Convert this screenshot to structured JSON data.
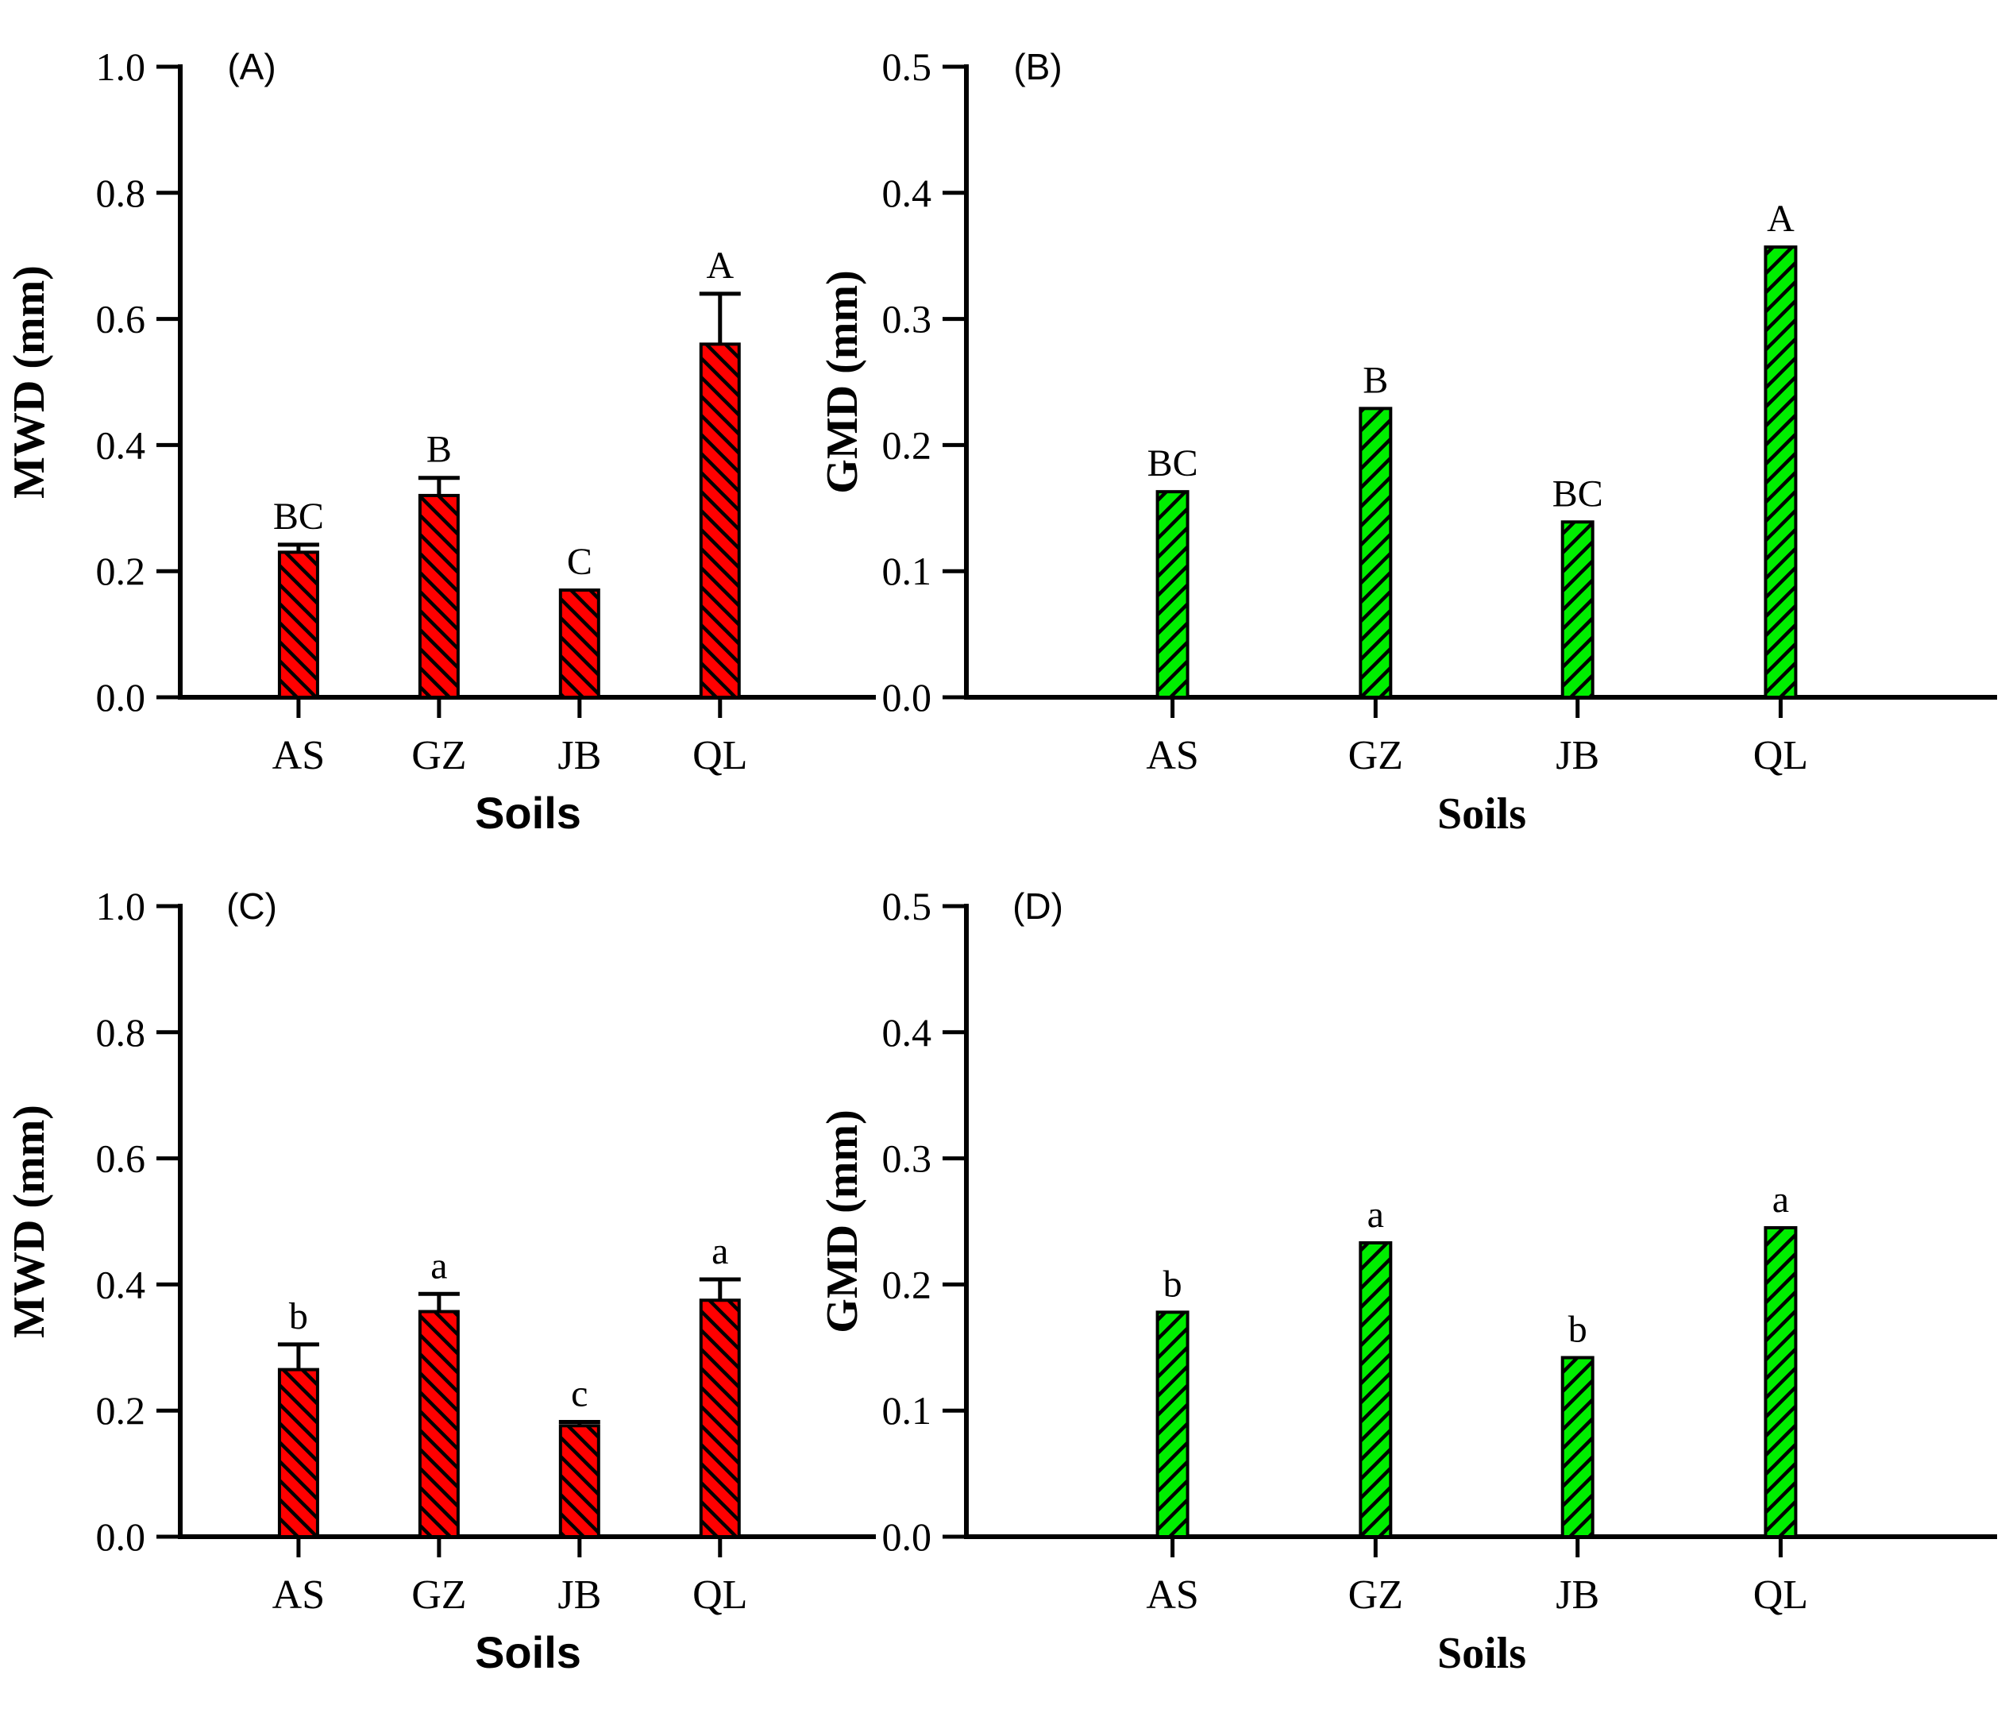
{
  "figure": {
    "description_visible_text_only": "",
    "background_color": "#ffffff",
    "axis_color": "#000000"
  },
  "chart_data": [
    {
      "type": "bar",
      "panel": "A",
      "panel_label": "(A)",
      "title": "",
      "xlabel": "Soils",
      "ylabel": "MWD (mm)",
      "categories": [
        "AS",
        "GZ",
        "JB",
        "QL"
      ],
      "values": [
        0.23,
        0.32,
        0.17,
        0.56
      ],
      "error_plus": [
        0.012,
        0.028,
        0,
        0.08
      ],
      "sig_labels": [
        "BC",
        "B",
        "C",
        "A"
      ],
      "ylim": [
        0,
        1.0
      ],
      "ytick_interval": 0.2,
      "ytick_labels": [
        "0.0",
        "0.2",
        "0.4",
        "0.6",
        "0.8",
        "1.0"
      ],
      "bar_color": "#ff0000",
      "hatch_direction": "\\",
      "xlabel_font": "sans-bold",
      "grid": false,
      "legend": "none"
    },
    {
      "type": "bar",
      "panel": "B",
      "panel_label": "(B)",
      "title": "",
      "xlabel": "Soils",
      "ylabel": "GMD (mm)",
      "categories": [
        "AS",
        "GZ",
        "JB",
        "QL"
      ],
      "values": [
        0.163,
        0.229,
        0.139,
        0.357
      ],
      "error_plus": [
        0,
        0,
        0,
        0
      ],
      "sig_labels": [
        "BC",
        "B",
        "BC",
        "A"
      ],
      "ylim": [
        0,
        0.5
      ],
      "ytick_interval": 0.1,
      "ytick_labels": [
        "0.0",
        "0.1",
        "0.2",
        "0.3",
        "0.4",
        "0.5"
      ],
      "bar_color": "#00ee00",
      "hatch_direction": "/",
      "xlabel_font": "serif-bold",
      "grid": false,
      "legend": "none"
    },
    {
      "type": "bar",
      "panel": "C",
      "panel_label": "(C)",
      "title": "",
      "xlabel": "Soils",
      "ylabel": "MWD (mm)",
      "categories": [
        "AS",
        "GZ",
        "JB",
        "QL"
      ],
      "values": [
        0.265,
        0.357,
        0.176,
        0.375
      ],
      "error_plus": [
        0.04,
        0.028,
        0.006,
        0.033
      ],
      "sig_labels": [
        "b",
        "a",
        "c",
        "a"
      ],
      "ylim": [
        0,
        1.0
      ],
      "ytick_interval": 0.2,
      "ytick_labels": [
        "0.0",
        "0.2",
        "0.4",
        "0.6",
        "0.8",
        "1.0"
      ],
      "bar_color": "#ff0000",
      "hatch_direction": "\\",
      "xlabel_font": "sans-bold",
      "grid": false,
      "legend": "none"
    },
    {
      "type": "bar",
      "panel": "D",
      "panel_label": "(D)",
      "title": "",
      "xlabel": "Soils",
      "ylabel": "GMD (mm)",
      "categories": [
        "AS",
        "GZ",
        "JB",
        "QL"
      ],
      "values": [
        0.178,
        0.233,
        0.142,
        0.245
      ],
      "error_plus": [
        0,
        0,
        0,
        0
      ],
      "sig_labels": [
        "b",
        "a",
        "b",
        "a"
      ],
      "ylim": [
        0,
        0.5
      ],
      "ytick_interval": 0.1,
      "ytick_labels": [
        "0.0",
        "0.1",
        "0.2",
        "0.3",
        "0.4",
        "0.5"
      ],
      "bar_color": "#00ee00",
      "hatch_direction": "/",
      "xlabel_font": "serif-bold",
      "grid": false,
      "legend": "none"
    }
  ]
}
